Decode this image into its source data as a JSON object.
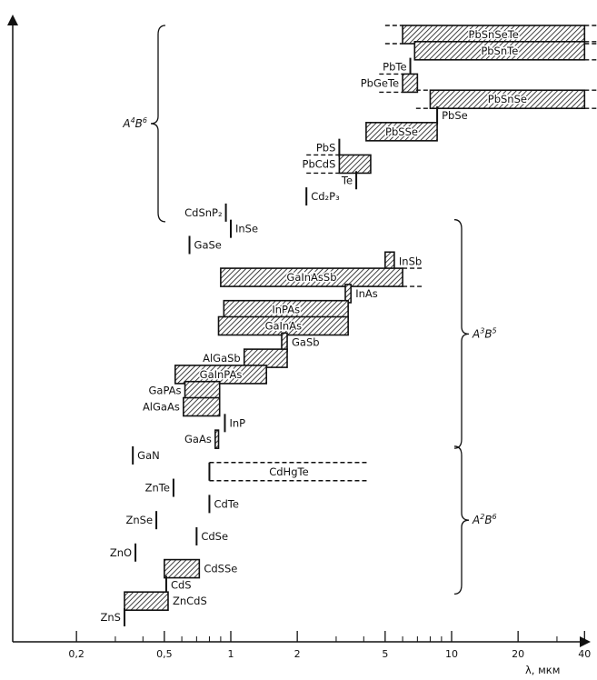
{
  "colors": {
    "ink": "#111111",
    "background": "#ffffff"
  },
  "chart_data": {
    "type": "bar",
    "orientation": "horizontal-ranges",
    "x_scale": "log",
    "xlabel": "λ, мкм",
    "xlim": [
      0.1,
      50
    ],
    "x_ticks": [
      0.2,
      0.5,
      1,
      2,
      5,
      10,
      20,
      40
    ],
    "x_tick_labels": [
      "0,2",
      "0,5",
      "1",
      "2",
      "5",
      "10",
      "20",
      "40"
    ],
    "grid": false,
    "groups": [
      {
        "name": "A⁴B⁶",
        "label_main": "A",
        "sup1": "4",
        "mid": "B",
        "sup2": "6",
        "range": [
          0,
          11
        ]
      },
      {
        "name": "A³B⁵",
        "label_main": "A",
        "sup1": "3",
        "mid": "B",
        "sup2": "5",
        "range": [
          12,
          25
        ]
      },
      {
        "name": "A²B⁶",
        "label_main": "A",
        "sup1": "2",
        "mid": "B",
        "sup2": "6",
        "range": [
          26,
          34
        ]
      }
    ],
    "materials": [
      {
        "name": "PbSnSeTe",
        "kind": "range",
        "x1": 6.0,
        "x2": 40,
        "ext_left": [
          5.0,
          6.0
        ],
        "ext_right": [
          40,
          48
        ],
        "label_pos": "inside"
      },
      {
        "name": "PbSnTe",
        "kind": "range",
        "x1": 6.8,
        "x2": 40,
        "ext_right": [
          40,
          48
        ],
        "label_pos": "inside"
      },
      {
        "name": "PbTe",
        "kind": "line",
        "x1": 6.5,
        "label_pos": "left"
      },
      {
        "name": "PbGeTe",
        "kind": "range",
        "x1": 6.0,
        "x2": 7.0,
        "ext_left": [
          4.7,
          6.0
        ],
        "label_pos": "left"
      },
      {
        "name": "PbSnSe",
        "kind": "range",
        "x1": 8.0,
        "x2": 40,
        "ext_left": [
          6.9,
          8.0
        ],
        "ext_right": [
          40,
          48
        ],
        "label_pos": "inside"
      },
      {
        "name": "PbSe",
        "kind": "line",
        "x1": 8.6,
        "label_pos": "right"
      },
      {
        "name": "PbSSe",
        "kind": "range",
        "x1": 4.1,
        "x2": 8.6,
        "label_pos": "inside"
      },
      {
        "name": "PbS",
        "kind": "line",
        "x1": 3.1,
        "label_pos": "left"
      },
      {
        "name": "PbCdS",
        "kind": "range",
        "x1": 3.1,
        "x2": 4.3,
        "ext_left": [
          2.2,
          3.1
        ],
        "label_pos": "left"
      },
      {
        "name": "Te",
        "kind": "line",
        "x1": 3.7,
        "label_pos": "left"
      },
      {
        "name": "Cd₂P₃",
        "kind": "line",
        "x1": 2.2,
        "label_pos": "right"
      },
      {
        "name": "CdSnP₂",
        "kind": "line",
        "x1": 0.95,
        "label_pos": "left"
      },
      {
        "name": "InSe",
        "kind": "line",
        "x1": 1.0,
        "label_pos": "right"
      },
      {
        "name": "GaSe",
        "kind": "line",
        "x1": 0.65,
        "label_pos": "right"
      },
      {
        "name": "InSb",
        "kind": "range",
        "x1": 5.0,
        "x2": 5.5,
        "label_pos": "right"
      },
      {
        "name": "GaInAsSb",
        "kind": "range",
        "x1": 0.9,
        "x2": 6.0,
        "ext_right": [
          6.0,
          7.5
        ],
        "label_pos": "inside"
      },
      {
        "name": "InAs",
        "kind": "range",
        "x1": 3.3,
        "x2": 3.5,
        "label_pos": "right"
      },
      {
        "name": "InPAs",
        "kind": "range",
        "x1": 0.93,
        "x2": 3.4,
        "label_pos": "inside"
      },
      {
        "name": "GaInAs",
        "kind": "range",
        "x1": 0.88,
        "x2": 3.4,
        "label_pos": "inside"
      },
      {
        "name": "GaSb",
        "kind": "range",
        "x1": 1.7,
        "x2": 1.8,
        "label_pos": "right"
      },
      {
        "name": "AlGaSb",
        "kind": "range",
        "x1": 1.15,
        "x2": 1.8,
        "label_pos": "left"
      },
      {
        "name": "GaInPAs",
        "kind": "range",
        "x1": 0.56,
        "x2": 1.45,
        "label_pos": "inside"
      },
      {
        "name": "GaPAs",
        "kind": "range",
        "x1": 0.62,
        "x2": 0.89,
        "label_pos": "left"
      },
      {
        "name": "AlGaAs",
        "kind": "range",
        "x1": 0.61,
        "x2": 0.89,
        "label_pos": "left"
      },
      {
        "name": "InP",
        "kind": "line",
        "x1": 0.94,
        "label_pos": "right"
      },
      {
        "name": "GaAs",
        "kind": "range",
        "x1": 0.85,
        "x2": 0.88,
        "label_pos": "left"
      },
      {
        "name": "GaN",
        "kind": "line",
        "x1": 0.36,
        "label_pos": "right"
      },
      {
        "name": "CdHgTe",
        "kind": "dashed",
        "x1": 0.8,
        "x2": 4.2,
        "label_pos": "above"
      },
      {
        "name": "ZnTe",
        "kind": "line",
        "x1": 0.55,
        "label_pos": "left"
      },
      {
        "name": "CdTe",
        "kind": "line",
        "x1": 0.8,
        "label_pos": "right"
      },
      {
        "name": "ZnSe",
        "kind": "line",
        "x1": 0.46,
        "label_pos": "left"
      },
      {
        "name": "CdSe",
        "kind": "line",
        "x1": 0.7,
        "label_pos": "right"
      },
      {
        "name": "ZnO",
        "kind": "line",
        "x1": 0.37,
        "label_pos": "left"
      },
      {
        "name": "CdSSe",
        "kind": "range",
        "x1": 0.5,
        "x2": 0.72,
        "label_pos": "right"
      },
      {
        "name": "CdS",
        "kind": "line",
        "x1": 0.51,
        "label_pos": "right"
      },
      {
        "name": "ZnCdS",
        "kind": "range",
        "x1": 0.33,
        "x2": 0.52,
        "label_pos": "right"
      },
      {
        "name": "ZnS",
        "kind": "line",
        "x1": 0.33,
        "label_pos": "left"
      }
    ]
  }
}
